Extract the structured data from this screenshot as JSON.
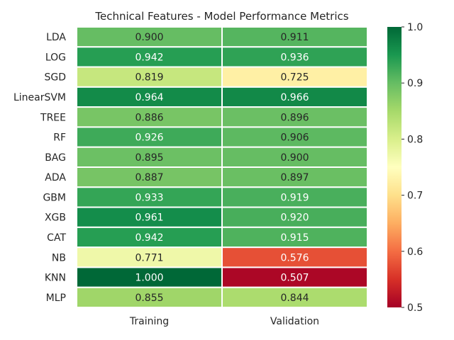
{
  "chart_data": {
    "type": "heatmap",
    "title": "Technical Features - Model Performance Metrics",
    "columns": [
      "Training",
      "Validation"
    ],
    "rows": [
      "LDA",
      "LOG",
      "SGD",
      "LinearSVM",
      "TREE",
      "RF",
      "BAG",
      "ADA",
      "GBM",
      "XGB",
      "CAT",
      "NB",
      "KNN",
      "MLP"
    ],
    "values": [
      [
        0.9,
        0.911
      ],
      [
        0.942,
        0.936
      ],
      [
        0.819,
        0.725
      ],
      [
        0.964,
        0.966
      ],
      [
        0.886,
        0.896
      ],
      [
        0.926,
        0.906
      ],
      [
        0.895,
        0.9
      ],
      [
        0.887,
        0.897
      ],
      [
        0.933,
        0.919
      ],
      [
        0.961,
        0.92
      ],
      [
        0.942,
        0.915
      ],
      [
        0.771,
        0.576
      ],
      [
        1.0,
        0.507
      ],
      [
        0.855,
        0.844
      ]
    ],
    "colorbar": {
      "colormap": "RdYlGn",
      "vmin": 0.5,
      "vmax": 1.0,
      "ticks": [
        "0.5",
        "0.6",
        "0.7",
        "0.8",
        "0.9",
        "1.0"
      ]
    },
    "annotation_format": "3 decimals",
    "cell_borders": "white"
  }
}
